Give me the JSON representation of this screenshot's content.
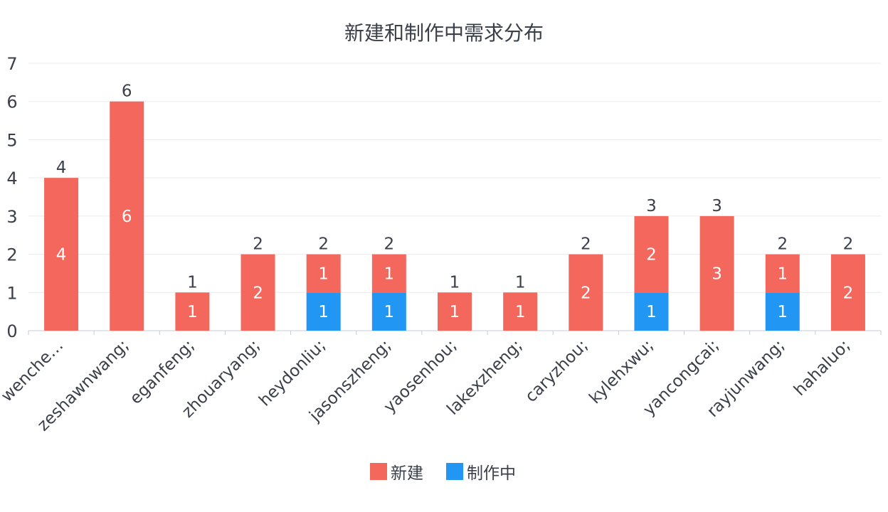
{
  "chart_data": {
    "type": "bar",
    "stacked": true,
    "title": "新建和制作中需求分布",
    "categories": [
      "wenche…",
      "zeshawnwang;",
      "eganfeng;",
      "zhouaryang;",
      "heydonliu;",
      "jasonszheng;",
      "yaosenhou;",
      "lakexzheng;",
      "caryzhou;",
      "kylehxwu;",
      "yancongcai;",
      "rayjunwang;",
      "hahaluo;"
    ],
    "series": [
      {
        "name": "制作中",
        "color": "#2196f3",
        "values": [
          0,
          0,
          0,
          0,
          1,
          1,
          0,
          0,
          0,
          1,
          0,
          1,
          0
        ]
      },
      {
        "name": "新建",
        "color": "#f4675d",
        "values": [
          4,
          6,
          1,
          2,
          1,
          1,
          1,
          1,
          2,
          2,
          3,
          1,
          2
        ]
      }
    ],
    "totals": [
      4,
      6,
      1,
      2,
      2,
      2,
      1,
      1,
      2,
      3,
      3,
      2,
      2
    ],
    "yticks": [
      0,
      1,
      2,
      3,
      4,
      5,
      6,
      7
    ],
    "ylim": [
      0,
      7
    ],
    "grid": true,
    "legend": {
      "position": "bottom-center",
      "order": [
        "新建",
        "制作中"
      ]
    }
  }
}
